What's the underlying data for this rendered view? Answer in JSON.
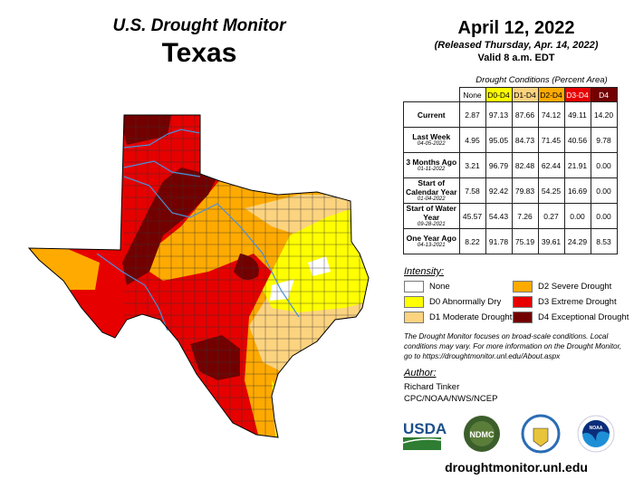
{
  "header": {
    "product": "U.S. Drought Monitor",
    "region": "Texas",
    "date": "April 12, 2022",
    "released": "(Released Thursday, Apr. 14, 2022)",
    "valid": "Valid 8 a.m. EDT"
  },
  "table": {
    "caption": "Drought Conditions (Percent Area)",
    "columns": [
      {
        "label": "None",
        "color": "#ffffff",
        "text": "#000"
      },
      {
        "label": "D0-D4",
        "color": "#ffff00",
        "text": "#000"
      },
      {
        "label": "D1-D4",
        "color": "#fcd37f",
        "text": "#000"
      },
      {
        "label": "D2-D4",
        "color": "#ffaa00",
        "text": "#000"
      },
      {
        "label": "D3-D4",
        "color": "#e60000",
        "text": "#fff"
      },
      {
        "label": "D4",
        "color": "#730000",
        "text": "#fff"
      }
    ],
    "rows": [
      {
        "label": "Current",
        "date": "",
        "values": [
          "2.87",
          "97.13",
          "87.66",
          "74.12",
          "49.11",
          "14.20"
        ]
      },
      {
        "label": "Last Week",
        "date": "04-05-2022",
        "values": [
          "4.95",
          "95.05",
          "84.73",
          "71.45",
          "40.56",
          "9.78"
        ]
      },
      {
        "label": "3 Months Ago",
        "date": "01-11-2022",
        "values": [
          "3.21",
          "96.79",
          "82.48",
          "62.44",
          "21.91",
          "0.00"
        ]
      },
      {
        "label": "Start of Calendar Year",
        "date": "01-04-2022",
        "values": [
          "7.58",
          "92.42",
          "79.83",
          "54.25",
          "16.69",
          "0.00"
        ]
      },
      {
        "label": "Start of Water Year",
        "date": "09-28-2021",
        "values": [
          "45.57",
          "54.43",
          "7.26",
          "0.27",
          "0.00",
          "0.00"
        ]
      },
      {
        "label": "One Year Ago",
        "date": "04-13-2021",
        "values": [
          "8.22",
          "91.78",
          "75.19",
          "39.61",
          "24.29",
          "8.53"
        ]
      }
    ]
  },
  "legend": {
    "title": "Intensity:",
    "items": [
      {
        "label": "None",
        "color": "#ffffff"
      },
      {
        "label": "D0 Abnormally Dry",
        "color": "#ffff00"
      },
      {
        "label": "D1 Moderate Drought",
        "color": "#fcd37f"
      },
      {
        "label": "D2 Severe Drought",
        "color": "#ffaa00"
      },
      {
        "label": "D3 Extreme Drought",
        "color": "#e60000"
      },
      {
        "label": "D4 Exceptional Drought",
        "color": "#730000"
      }
    ]
  },
  "note": "The Drought Monitor focuses on broad-scale conditions. Local conditions may vary. For more information on the Drought Monitor, go to https://droughtmonitor.unl.edu/About.aspx",
  "author": {
    "title": "Author:",
    "name": "Richard Tinker",
    "org": "CPC/NOAA/NWS/NCEP"
  },
  "logos": [
    "USDA",
    "NDMC",
    "Department of Commerce",
    "NOAA"
  ],
  "url": "droughtmonitor.unl.edu"
}
